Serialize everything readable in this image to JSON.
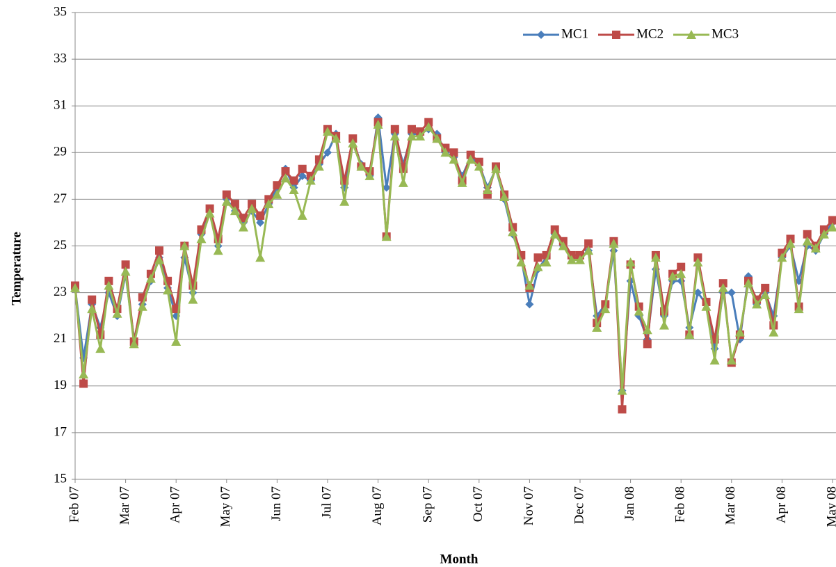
{
  "chart_data": {
    "type": "line",
    "x_label": "Month",
    "y_label": "Temperature",
    "categories": [
      "Feb 07",
      null,
      null,
      null,
      null,
      null,
      "Mar 07",
      null,
      null,
      null,
      null,
      null,
      "Apr 07",
      null,
      null,
      null,
      null,
      null,
      "May 07",
      null,
      null,
      null,
      null,
      null,
      "Jun 07",
      null,
      null,
      null,
      null,
      null,
      "Jul 07",
      null,
      null,
      null,
      null,
      null,
      "Aug 07",
      null,
      null,
      null,
      null,
      null,
      "Sep 07",
      null,
      null,
      null,
      null,
      null,
      "Oct 07",
      null,
      null,
      null,
      null,
      null,
      "Nov 07",
      null,
      null,
      null,
      null,
      null,
      "Dec 07",
      null,
      null,
      null,
      null,
      null,
      "Jan 08",
      null,
      null,
      null,
      null,
      null,
      "Feb 08",
      null,
      null,
      null,
      null,
      null,
      "Mar 08",
      null,
      null,
      null,
      null,
      null,
      "Apr 08",
      null,
      null,
      null,
      null,
      null,
      "May 08"
    ],
    "series": [
      {
        "name": "MC1",
        "color": "#4a7ebb",
        "marker": "diamond",
        "values": [
          23.2,
          20.2,
          22.5,
          21.5,
          23.0,
          22.0,
          23.8,
          21.0,
          22.5,
          23.5,
          24.5,
          23.2,
          22.0,
          24.5,
          23.0,
          25.5,
          26.5,
          25.0,
          27.0,
          26.5,
          26.0,
          26.5,
          26.0,
          26.8,
          27.5,
          28.3,
          27.5,
          28.0,
          27.8,
          28.5,
          29.0,
          29.8,
          27.5,
          29.5,
          28.5,
          28.0,
          30.5,
          27.5,
          29.8,
          28.5,
          29.8,
          29.8,
          30.0,
          29.8,
          29.0,
          28.8,
          28.0,
          28.8,
          28.5,
          27.5,
          28.3,
          27.0,
          25.5,
          24.5,
          22.5,
          24.0,
          24.5,
          25.5,
          25.0,
          24.5,
          24.5,
          24.8,
          22.0,
          22.5,
          24.8,
          18.8,
          23.5,
          22.0,
          21.0,
          24.0,
          22.0,
          23.5,
          23.5,
          21.5,
          23.0,
          22.5,
          20.6,
          23.0,
          23.0,
          21.0,
          23.7,
          22.5,
          23.0,
          22.0,
          24.5,
          25.0,
          23.5,
          25.0,
          24.8,
          25.5,
          26.0
        ]
      },
      {
        "name": "MC2",
        "color": "#be4b48",
        "marker": "square",
        "values": [
          23.3,
          19.1,
          22.7,
          21.2,
          23.5,
          22.3,
          24.2,
          20.9,
          22.8,
          23.8,
          24.8,
          23.5,
          22.3,
          25.0,
          23.3,
          25.7,
          26.6,
          25.3,
          27.2,
          26.8,
          26.2,
          26.8,
          26.3,
          27.0,
          27.6,
          28.2,
          27.8,
          28.3,
          28.0,
          28.7,
          30.0,
          29.7,
          27.8,
          29.6,
          28.4,
          28.2,
          30.3,
          25.4,
          30.0,
          28.3,
          30.0,
          29.9,
          30.3,
          29.6,
          29.2,
          29.0,
          27.8,
          28.9,
          28.6,
          27.2,
          28.4,
          27.2,
          25.8,
          24.6,
          23.2,
          24.5,
          24.6,
          25.7,
          25.2,
          24.6,
          24.6,
          25.1,
          21.7,
          22.5,
          25.2,
          18.0,
          24.2,
          22.4,
          20.8,
          24.6,
          22.2,
          23.8,
          24.1,
          21.2,
          24.5,
          22.6,
          21.0,
          23.4,
          20.0,
          21.2,
          23.5,
          22.7,
          23.2,
          21.6,
          24.7,
          25.3,
          22.4,
          25.5,
          25.0,
          25.7,
          26.1
        ]
      },
      {
        "name": "MC3",
        "color": "#98b954",
        "marker": "triangle",
        "values": [
          23.2,
          19.5,
          22.3,
          20.6,
          23.3,
          22.1,
          23.9,
          20.8,
          22.4,
          23.6,
          24.4,
          23.1,
          20.9,
          25.0,
          22.7,
          25.3,
          26.4,
          24.8,
          26.9,
          26.5,
          25.8,
          26.6,
          24.5,
          26.8,
          27.2,
          27.9,
          27.4,
          26.3,
          27.8,
          28.4,
          29.9,
          29.6,
          26.9,
          29.4,
          28.4,
          28.0,
          30.2,
          25.4,
          29.7,
          27.7,
          29.7,
          29.7,
          30.1,
          29.6,
          29.0,
          28.7,
          27.7,
          28.7,
          28.4,
          27.4,
          28.3,
          27.1,
          25.6,
          24.3,
          23.3,
          24.1,
          24.3,
          25.5,
          25.0,
          24.4,
          24.4,
          24.8,
          21.5,
          22.3,
          25.1,
          18.8,
          24.3,
          22.2,
          21.4,
          24.5,
          21.6,
          23.7,
          23.8,
          21.2,
          24.3,
          22.4,
          20.1,
          23.2,
          20.1,
          21.3,
          23.4,
          22.5,
          22.9,
          21.3,
          24.5,
          25.1,
          22.3,
          25.2,
          24.9,
          25.5,
          25.8
        ]
      }
    ],
    "ylim": [
      15,
      35
    ],
    "yticks": [
      15,
      17,
      19,
      21,
      23,
      25,
      27,
      29,
      31,
      33,
      35
    ],
    "grid": true,
    "legend": "top-right"
  }
}
